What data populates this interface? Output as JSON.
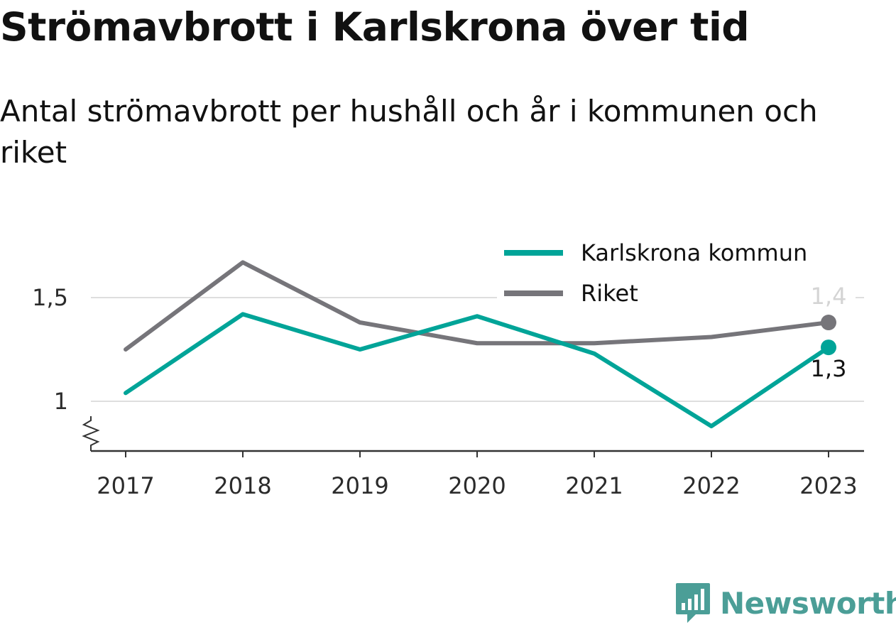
{
  "header": {
    "title": "Strömavbrott i Karlskrona över tid",
    "subtitle": "Antal strömavbrott per hushåll och år i kommunen och riket"
  },
  "brand": {
    "name": "Newsworthy",
    "icon": "newsworthy-logo-icon",
    "color": "#4b9e97"
  },
  "chart_data": {
    "type": "line",
    "title": "Strömavbrott i Karlskrona över tid",
    "subtitle": "Antal strömavbrott per hushåll och år i kommunen och riket",
    "x": [
      "2017",
      "2018",
      "2019",
      "2020",
      "2021",
      "2022",
      "2023"
    ],
    "series": [
      {
        "name": "Karlskrona kommun",
        "color": "#00a498",
        "values": [
          1.04,
          1.42,
          1.25,
          1.41,
          1.23,
          0.88,
          1.26
        ],
        "end_label": "1,3"
      },
      {
        "name": "Riket",
        "color": "#76757a",
        "values": [
          1.25,
          1.67,
          1.38,
          1.28,
          1.28,
          1.31,
          1.38
        ],
        "end_label": "1,4"
      }
    ],
    "yticks": [
      {
        "value": 1,
        "label": "1"
      },
      {
        "value": 1.5,
        "label": "1,5"
      }
    ],
    "ylim": [
      0.8,
      1.85
    ],
    "axis_break": true,
    "grid": true,
    "legend_position": "top-right"
  }
}
